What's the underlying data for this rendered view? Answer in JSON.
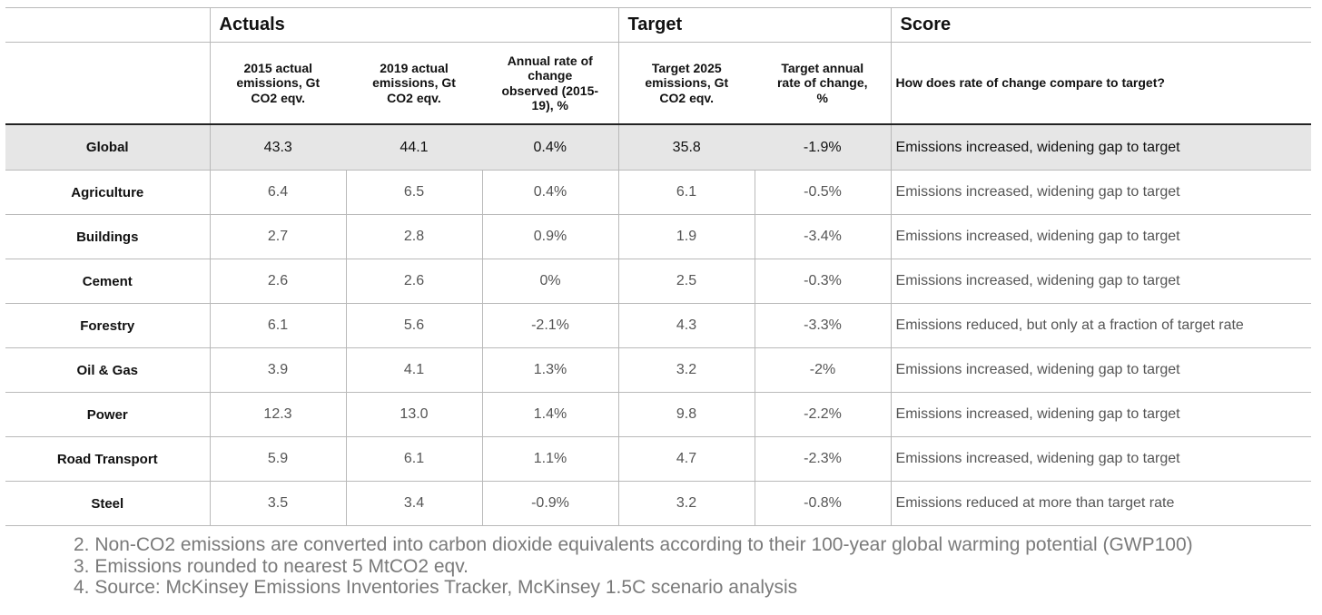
{
  "groups": {
    "actuals": "Actuals",
    "target": "Target",
    "score": "Score"
  },
  "subheaders": {
    "actual_2015": "2015 actual emissions, Gt CO2 eqv.",
    "actual_2019": "2019 actual emissions, Gt CO2 eqv.",
    "annual_rate": "Annual rate of change observed (2015-19), %",
    "target_2025": "Target 2025 emissions, Gt CO2 eqv.",
    "target_rate": "Target annual rate of change, %",
    "score_question": "How does rate of change compare to target?"
  },
  "rows": [
    {
      "label": "Global",
      "e2015": "43.3",
      "e2019": "44.1",
      "rate": "0.4%",
      "t2025": "35.8",
      "trate": "-1.9%",
      "score": "Emissions increased, widening gap to target"
    },
    {
      "label": "Agriculture",
      "e2015": "6.4",
      "e2019": "6.5",
      "rate": "0.4%",
      "t2025": "6.1",
      "trate": "-0.5%",
      "score": "Emissions increased, widening gap to target"
    },
    {
      "label": "Buildings",
      "e2015": "2.7",
      "e2019": "2.8",
      "rate": "0.9%",
      "t2025": "1.9",
      "trate": "-3.4%",
      "score": "Emissions increased, widening gap to target"
    },
    {
      "label": "Cement",
      "e2015": "2.6",
      "e2019": "2.6",
      "rate": "0%",
      "t2025": "2.5",
      "trate": "-0.3%",
      "score": "Emissions increased, widening gap to target"
    },
    {
      "label": "Forestry",
      "e2015": "6.1",
      "e2019": "5.6",
      "rate": "-2.1%",
      "t2025": "4.3",
      "trate": "-3.3%",
      "score": "Emissions reduced, but only at a fraction of target rate"
    },
    {
      "label": "Oil & Gas",
      "e2015": "3.9",
      "e2019": "4.1",
      "rate": "1.3%",
      "t2025": "3.2",
      "trate": "-2%",
      "score": "Emissions increased, widening gap to target"
    },
    {
      "label": "Power",
      "e2015": "12.3",
      "e2019": "13.0",
      "rate": "1.4%",
      "t2025": "9.8",
      "trate": "-2.2%",
      "score": "Emissions increased, widening gap to target"
    },
    {
      "label": "Road Transport",
      "e2015": "5.9",
      "e2019": "6.1",
      "rate": "1.1%",
      "t2025": "4.7",
      "trate": "-2.3%",
      "score": "Emissions increased, widening gap to target"
    },
    {
      "label": "Steel",
      "e2015": "3.5",
      "e2019": "3.4",
      "rate": "-0.9%",
      "t2025": "3.2",
      "trate": "-0.8%",
      "score": "Emissions reduced at more than target rate"
    }
  ],
  "notes": [
    "2. Non-CO2 emissions are converted into carbon dioxide equivalents according to their 100-year global warming potential (GWP100)",
    "3. Emissions rounded to nearest 5 MtCO2 eqv.",
    "4. Source: McKinsey Emissions Inventories Tracker, McKinsey 1.5C scenario analysis"
  ]
}
